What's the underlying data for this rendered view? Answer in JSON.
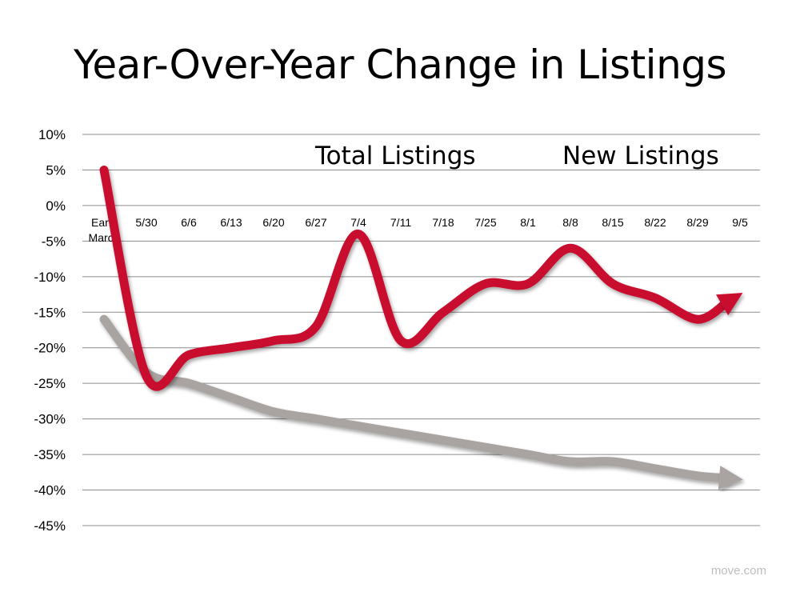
{
  "chart_data": {
    "type": "line",
    "title": "Year-Over-Year Change in Listings",
    "categories": [
      "Early March",
      "5/30",
      "6/6",
      "6/13",
      "6/20",
      "6/27",
      "7/4",
      "7/11",
      "7/18",
      "7/25",
      "8/1",
      "8/8",
      "8/15",
      "8/22",
      "8/29",
      "9/5"
    ],
    "category_lines": [
      [
        "Early",
        "March"
      ],
      [
        "5/30"
      ],
      [
        "6/6"
      ],
      [
        "6/13"
      ],
      [
        "6/20"
      ],
      [
        "6/27"
      ],
      [
        "7/4"
      ],
      [
        "7/11"
      ],
      [
        "7/18"
      ],
      [
        "7/25"
      ],
      [
        "8/1"
      ],
      [
        "8/8"
      ],
      [
        "8/15"
      ],
      [
        "8/22"
      ],
      [
        "8/29"
      ],
      [
        "9/5"
      ]
    ],
    "ylim": [
      -45,
      10
    ],
    "yticks": [
      10,
      5,
      0,
      -5,
      -10,
      -15,
      -20,
      -25,
      -30,
      -35,
      -40,
      -45
    ],
    "ytick_labels": [
      "10%",
      "5%",
      "0%",
      "-5%",
      "-10%",
      "-15%",
      "-20%",
      "-25%",
      "-30%",
      "-35%",
      "-40%",
      "-45%"
    ],
    "grid": true,
    "legend_position": "top-right",
    "series": [
      {
        "name": "Total Listings",
        "color": "#a9a4a1",
        "values": [
          -16,
          -23.5,
          -25,
          -27,
          -29,
          -30,
          -31,
          -32,
          -33,
          -34,
          -35,
          -36,
          -36,
          -37,
          -38,
          -38.5
        ]
      },
      {
        "name": "New Listings",
        "color": "#c8102e",
        "values": [
          5,
          -24,
          -21,
          -20,
          -19,
          -17,
          -4,
          -19,
          -15,
          -11,
          -11,
          -6,
          -11,
          -13,
          -16,
          -12.5
        ]
      }
    ]
  },
  "footer": {
    "source": "move.com"
  }
}
